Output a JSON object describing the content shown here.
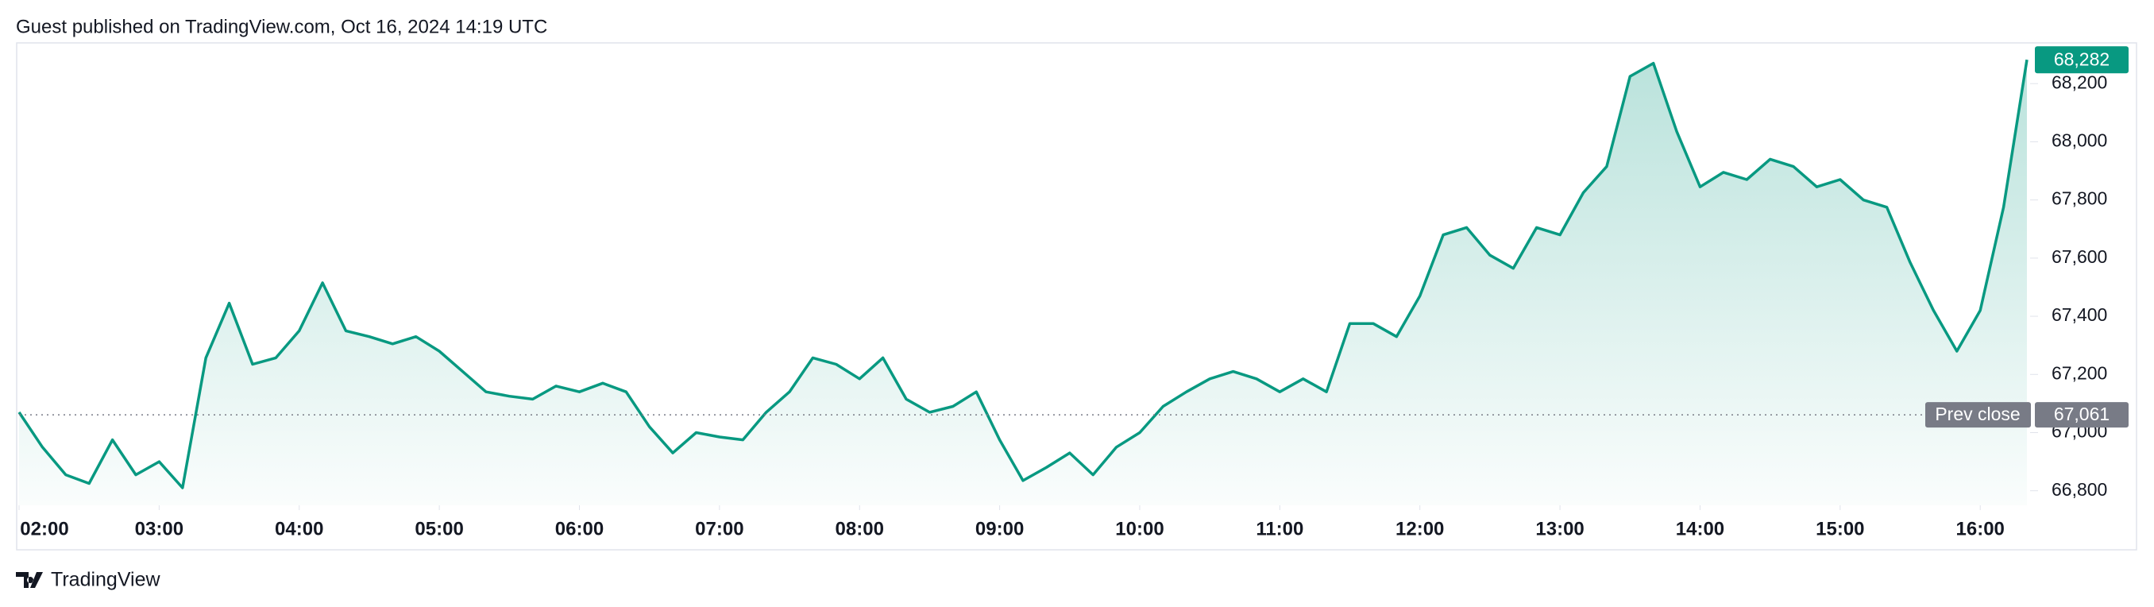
{
  "header": {
    "text": "Guest published on TradingView.com, Oct 16, 2024 14:19 UTC"
  },
  "footer": {
    "brand": "TradingView"
  },
  "chart_data": {
    "type": "line",
    "x": [
      "02:00",
      "02:10",
      "02:20",
      "02:30",
      "02:40",
      "02:50",
      "03:00",
      "03:10",
      "03:20",
      "03:30",
      "03:40",
      "03:50",
      "04:00",
      "04:10",
      "04:20",
      "04:30",
      "04:40",
      "04:50",
      "05:00",
      "05:10",
      "05:20",
      "05:30",
      "05:40",
      "05:50",
      "06:00",
      "06:10",
      "06:20",
      "06:30",
      "06:40",
      "06:50",
      "07:00",
      "07:10",
      "07:20",
      "07:30",
      "07:40",
      "07:50",
      "08:00",
      "08:10",
      "08:20",
      "08:30",
      "08:40",
      "08:50",
      "09:00",
      "09:10",
      "09:20",
      "09:30",
      "09:40",
      "09:50",
      "10:00",
      "10:10",
      "10:20",
      "10:30",
      "10:40",
      "10:50",
      "11:00",
      "11:10",
      "11:20",
      "11:30",
      "11:40",
      "11:50",
      "12:00",
      "12:10",
      "12:20",
      "12:30",
      "12:40",
      "12:50",
      "13:00",
      "13:10",
      "13:20",
      "13:30",
      "13:40",
      "13:50",
      "14:00",
      "14:10",
      "14:20",
      "14:30",
      "14:40",
      "14:50",
      "15:00",
      "15:10",
      "15:20",
      "15:30",
      "15:40",
      "15:50",
      "16:00",
      "16:10",
      "16:20"
    ],
    "series": [
      {
        "color": "#089981",
        "values": [
          67070,
          66950,
          66855,
          66825,
          66975,
          66855,
          66900,
          66810,
          67257,
          67445,
          67235,
          67257,
          67350,
          67515,
          67350,
          67330,
          67305,
          67330,
          67280,
          67210,
          67140,
          67125,
          67115,
          67160,
          67140,
          67170,
          67140,
          67020,
          66930,
          67000,
          66985,
          66975,
          67070,
          67140,
          67257,
          67235,
          67185,
          67257,
          67115,
          67070,
          67090,
          67140,
          66975,
          66835,
          66880,
          66930,
          66855,
          66950,
          67000,
          67090,
          67140,
          67185,
          67210,
          67185,
          67140,
          67185,
          67140,
          67375,
          67375,
          67330,
          67470,
          67680,
          67705,
          67610,
          67565,
          67705,
          67680,
          67825,
          67915,
          68225,
          68270,
          68035,
          67845,
          67895,
          67870,
          67940,
          67915,
          67845,
          67870,
          67800,
          67775,
          67585,
          67420,
          67280,
          67420,
          67775,
          68282
        ]
      }
    ],
    "xlim": [
      "02:00",
      "16:20"
    ],
    "xticks": [
      "02:00",
      "03:00",
      "04:00",
      "05:00",
      "06:00",
      "07:00",
      "08:00",
      "09:00",
      "10:00",
      "11:00",
      "12:00",
      "13:00",
      "14:00",
      "15:00",
      "16:00"
    ],
    "ylim": [
      66750,
      68340
    ],
    "yticks": [
      {
        "value": 66800,
        "label": "66,800"
      },
      {
        "value": 67000,
        "label": "67,000"
      },
      {
        "value": 67200,
        "label": "67,200"
      },
      {
        "value": 67400,
        "label": "67,400"
      },
      {
        "value": 67600,
        "label": "67,600"
      },
      {
        "value": 67800,
        "label": "67,800"
      },
      {
        "value": 68000,
        "label": "68,000"
      },
      {
        "value": 68200,
        "label": "68,200"
      }
    ],
    "last_price": {
      "value": 68282,
      "label": "68,282"
    },
    "prev_close": {
      "name": "Prev close",
      "value": 67061,
      "label": "67,061"
    }
  }
}
